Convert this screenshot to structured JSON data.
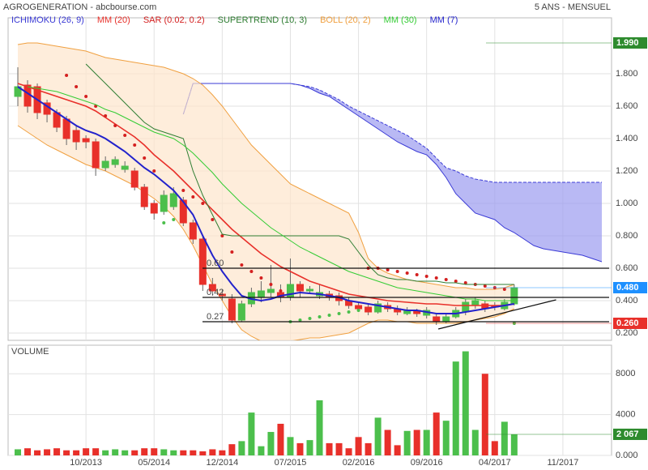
{
  "header": {
    "title": "AGROGENERATION - abcbourse.com",
    "period": "5 ANS - MENSUEL"
  },
  "chart_data": [
    {
      "type": "candlestick",
      "up_color": "#4cbf4c",
      "down_color": "#e8302a",
      "open": [
        1.66,
        1.73,
        1.72,
        1.62,
        1.56,
        1.52,
        1.45,
        1.4,
        1.38,
        1.22,
        1.24,
        1.21,
        1.2,
        1.1,
        1.0,
        0.95,
        0.98,
        1.02,
        0.88,
        0.78,
        0.5,
        0.44,
        0.41,
        0.28,
        0.38,
        0.42,
        0.45,
        0.45,
        0.42,
        0.5,
        0.46,
        0.43,
        0.44,
        0.43,
        0.4,
        0.37,
        0.36,
        0.33,
        0.37,
        0.35,
        0.32,
        0.34,
        0.31,
        0.3,
        0.27,
        0.3,
        0.33,
        0.37,
        0.38,
        0.37,
        0.35,
        0.38
      ],
      "high": [
        1.84,
        1.76,
        1.74,
        1.64,
        1.58,
        1.54,
        1.48,
        1.42,
        1.4,
        1.29,
        1.29,
        1.26,
        1.22,
        1.12,
        1.02,
        1.08,
        1.1,
        1.04,
        0.9,
        0.8,
        0.54,
        0.47,
        0.44,
        0.4,
        0.48,
        0.52,
        0.62,
        0.5,
        0.66,
        0.52,
        0.49,
        0.5,
        0.46,
        0.45,
        0.42,
        0.39,
        0.38,
        0.4,
        0.39,
        0.37,
        0.36,
        0.35,
        0.36,
        0.32,
        0.32,
        0.36,
        0.41,
        0.42,
        0.4,
        0.39,
        0.41,
        0.5
      ],
      "low": [
        1.6,
        1.56,
        1.52,
        1.5,
        1.44,
        1.36,
        1.33,
        1.34,
        1.17,
        1.2,
        1.22,
        1.19,
        1.08,
        0.96,
        0.9,
        0.93,
        0.96,
        0.86,
        0.75,
        0.46,
        0.43,
        0.4,
        0.26,
        0.27,
        0.36,
        0.39,
        0.42,
        0.39,
        0.4,
        0.42,
        0.44,
        0.41,
        0.4,
        0.37,
        0.35,
        0.33,
        0.31,
        0.32,
        0.33,
        0.31,
        0.31,
        0.3,
        0.29,
        0.25,
        0.26,
        0.29,
        0.31,
        0.35,
        0.33,
        0.34,
        0.34,
        0.37
      ],
      "close": [
        1.72,
        1.6,
        1.56,
        1.55,
        1.47,
        1.4,
        1.38,
        1.38,
        1.22,
        1.26,
        1.27,
        1.23,
        1.1,
        0.98,
        0.94,
        1.05,
        1.06,
        0.88,
        0.78,
        0.5,
        0.46,
        0.43,
        0.28,
        0.38,
        0.45,
        0.46,
        0.47,
        0.42,
        0.5,
        0.46,
        0.47,
        0.45,
        0.42,
        0.4,
        0.37,
        0.35,
        0.33,
        0.38,
        0.35,
        0.33,
        0.34,
        0.32,
        0.34,
        0.27,
        0.3,
        0.34,
        0.39,
        0.4,
        0.35,
        0.36,
        0.39,
        0.48
      ],
      "ylim": [
        0.155,
        2.145
      ],
      "yticks": [
        {
          "value": 0.2,
          "label": "0.200"
        },
        {
          "value": 0.4,
          "label": "0.400"
        },
        {
          "value": 0.6,
          "label": "0.600"
        },
        {
          "value": 0.8,
          "label": "0.800"
        },
        {
          "value": 1.0,
          "label": "1.000"
        },
        {
          "value": 1.2,
          "label": "1.200"
        },
        {
          "value": 1.4,
          "label": "1.400"
        },
        {
          "value": 1.6,
          "label": "1.600"
        },
        {
          "value": 1.8,
          "label": "1.800"
        }
      ],
      "series": [
        {
          "name": "ICHIMOKU (26, 9)",
          "color": "#3a3ad6",
          "span_a": [
            null,
            null,
            null,
            null,
            null,
            null,
            null,
            null,
            null,
            null,
            null,
            null,
            null,
            null,
            null,
            null,
            null,
            1.55,
            1.74,
            1.74,
            1.74,
            1.74,
            1.74,
            1.74,
            1.74,
            1.74,
            1.74,
            1.74,
            1.74,
            1.73,
            1.72,
            1.7,
            1.67,
            1.64,
            1.6,
            1.57,
            1.54,
            1.51,
            1.48,
            1.45,
            1.42,
            1.38,
            1.34,
            1.28,
            1.22,
            1.2,
            1.17,
            1.15,
            1.14,
            1.13,
            1.13,
            1.13,
            1.13,
            1.13,
            1.13,
            1.13,
            1.13,
            1.13,
            1.13,
            1.13,
            1.13
          ],
          "span_b": [
            null,
            null,
            null,
            null,
            null,
            null,
            null,
            null,
            null,
            null,
            null,
            null,
            null,
            null,
            null,
            null,
            null,
            1.55,
            1.74,
            1.74,
            1.74,
            1.74,
            1.74,
            1.74,
            1.74,
            1.74,
            1.74,
            1.74,
            1.74,
            1.73,
            1.71,
            1.68,
            1.66,
            1.62,
            1.58,
            1.54,
            1.5,
            1.46,
            1.42,
            1.38,
            1.35,
            1.32,
            1.3,
            1.24,
            1.16,
            1.06,
            1.0,
            0.94,
            0.92,
            0.9,
            0.85,
            0.82,
            0.78,
            0.74,
            0.72,
            0.71,
            0.7,
            0.69,
            0.68,
            0.66,
            0.64
          ]
        },
        {
          "name": "MM (20)",
          "color": "#e8302a",
          "values": [
            1.74,
            1.72,
            1.7,
            1.68,
            1.66,
            1.64,
            1.62,
            1.6,
            1.57,
            1.53,
            1.49,
            1.45,
            1.41,
            1.36,
            1.3,
            1.25,
            1.2,
            1.14,
            1.08,
            1.02,
            0.96,
            0.9,
            0.84,
            0.79,
            0.74,
            0.69,
            0.65,
            0.61,
            0.58,
            0.55,
            0.52,
            0.5,
            0.48,
            0.46,
            0.44,
            0.43,
            0.42,
            0.41,
            0.4,
            0.395,
            0.39,
            0.385,
            0.38,
            0.38,
            0.375,
            0.37,
            0.37,
            0.37,
            0.37,
            0.37,
            0.37,
            0.38
          ]
        },
        {
          "name": "SAR (0.02, 0.2)",
          "color": "#d42020",
          "values": [
            null,
            null,
            null,
            null,
            null,
            1.79,
            1.72,
            1.66,
            1.6,
            1.54,
            1.48,
            1.42,
            1.36,
            1.28,
            1.2,
            0.88,
            0.9,
            1.08,
            1.04,
            1.0,
            0.9,
            0.8,
            0.7,
            0.62,
            0.58,
            0.54,
            0.5,
            0.46,
            0.27,
            0.28,
            0.29,
            0.3,
            0.31,
            0.32,
            0.33,
            0.34,
            0.6,
            0.6,
            0.59,
            0.58,
            0.57,
            0.56,
            0.55,
            0.54,
            0.53,
            0.52,
            0.51,
            0.5,
            0.49,
            0.48,
            0.47,
            0.26
          ]
        },
        {
          "name": "SUPERTREND (10, 3)",
          "color": "#2e7d32",
          "values": [
            null,
            null,
            null,
            null,
            null,
            null,
            null,
            1.86,
            1.8,
            1.74,
            1.68,
            1.62,
            1.56,
            1.5,
            1.46,
            1.44,
            1.42,
            1.4,
            1.2,
            1.05,
            0.93,
            0.81,
            0.8,
            0.8,
            0.8,
            0.8,
            0.8,
            0.8,
            0.8,
            0.8,
            0.8,
            0.8,
            0.8,
            0.8,
            0.78,
            0.7,
            0.62,
            0.56,
            0.54,
            0.53,
            0.53,
            0.52,
            0.52,
            0.52,
            0.51,
            0.51,
            0.5,
            0.5,
            0.5,
            0.5,
            0.5,
            0.5
          ]
        },
        {
          "name": "BOLL (20, 2)",
          "color": "#f0a040",
          "upper": [
            1.98,
            1.99,
            1.99,
            1.98,
            1.97,
            1.96,
            1.95,
            1.94,
            1.92,
            1.9,
            1.89,
            1.88,
            1.87,
            1.86,
            1.85,
            1.84,
            1.82,
            1.8,
            1.77,
            1.73,
            1.67,
            1.6,
            1.52,
            1.44,
            1.36,
            1.3,
            1.24,
            1.18,
            1.12,
            1.09,
            1.06,
            1.03,
            1.0,
            0.97,
            0.94,
            0.82,
            0.66,
            0.6,
            0.57,
            0.55,
            0.53,
            0.52,
            0.51,
            0.5,
            0.49,
            0.48,
            0.48,
            0.47,
            0.47,
            0.47,
            0.48,
            0.5
          ],
          "lower": [
            1.48,
            1.44,
            1.4,
            1.36,
            1.33,
            1.3,
            1.27,
            1.24,
            1.22,
            1.2,
            1.17,
            1.14,
            1.11,
            1.07,
            1.03,
            0.98,
            0.92,
            0.84,
            0.74,
            0.62,
            0.5,
            0.4,
            0.3,
            0.22,
            0.18,
            0.15,
            0.14,
            0.14,
            0.15,
            0.16,
            0.17,
            0.17,
            0.18,
            0.19,
            0.2,
            0.23,
            0.26,
            0.28,
            0.28,
            0.27,
            0.27,
            0.26,
            0.26,
            0.26,
            0.26,
            0.26,
            0.27,
            0.28,
            0.29,
            0.3,
            0.32,
            0.35
          ]
        },
        {
          "name": "MM (30)",
          "color": "#33cc33",
          "values": [
            null,
            1.72,
            1.71,
            1.7,
            1.69,
            1.67,
            1.65,
            1.63,
            1.61,
            1.58,
            1.56,
            1.53,
            1.5,
            1.47,
            1.44,
            1.42,
            1.4,
            1.36,
            1.31,
            1.25,
            1.19,
            1.12,
            1.06,
            1.0,
            0.95,
            0.9,
            0.85,
            0.81,
            0.77,
            0.73,
            0.7,
            0.67,
            0.64,
            0.61,
            0.58,
            0.56,
            0.54,
            0.52,
            0.5,
            0.48,
            0.47,
            0.46,
            0.45,
            0.44,
            0.43,
            0.42,
            0.41,
            0.41,
            0.4,
            0.4,
            0.4,
            0.4
          ]
        },
        {
          "name": "MM (7)",
          "color": "#2222cc",
          "values": [
            1.72,
            1.68,
            1.64,
            1.6,
            1.56,
            1.52,
            1.48,
            1.45,
            1.43,
            1.4,
            1.36,
            1.32,
            1.27,
            1.22,
            1.18,
            1.13,
            1.08,
            1.01,
            0.93,
            0.8,
            0.68,
            0.58,
            0.5,
            0.43,
            0.41,
            0.4,
            0.41,
            0.43,
            0.44,
            0.45,
            0.445,
            0.44,
            0.43,
            0.42,
            0.4,
            0.39,
            0.38,
            0.37,
            0.36,
            0.35,
            0.34,
            0.34,
            0.33,
            0.32,
            0.32,
            0.32,
            0.33,
            0.34,
            0.35,
            0.36,
            0.37,
            0.38
          ]
        }
      ],
      "levels": [
        {
          "value": 0.6,
          "label": "0.60"
        },
        {
          "value": 0.42,
          "label": "0.42"
        },
        {
          "value": 0.27,
          "label": "0.27"
        }
      ],
      "trendline": {
        "x": [
          43.2,
          55.3
        ],
        "values": [
          0.225,
          0.405
        ]
      },
      "markers": [
        {
          "value": 1.99,
          "label": "1.990",
          "color": "#2e8b2e"
        },
        {
          "value": 0.48,
          "label": "0.480",
          "color": "#1e90ff"
        },
        {
          "value": 0.26,
          "label": "0.260",
          "color": "#e8302a"
        }
      ]
    },
    {
      "type": "bar",
      "title": "VOLUME",
      "values": [
        600,
        700,
        500,
        600,
        700,
        500,
        500,
        700,
        700,
        500,
        600,
        500,
        500,
        700,
        700,
        600,
        500,
        500,
        500,
        400,
        600,
        500,
        1100,
        1400,
        4200,
        900,
        2300,
        3100,
        1800,
        1200,
        1500,
        5400,
        1200,
        1200,
        700,
        1800,
        1200,
        3700,
        2500,
        1000,
        2400,
        2500,
        2500,
        4200,
        3400,
        9200,
        10200,
        2500,
        8000,
        1400,
        3300,
        2067
      ],
      "ylim": [
        0,
        10800
      ],
      "yticks": [
        {
          "value": 0,
          "label": "0.000"
        },
        4000,
        8000
      ],
      "xlim": [
        -1,
        61
      ],
      "xticks": [
        {
          "value": 7,
          "label": "10/2013"
        },
        {
          "value": 14,
          "label": "05/2014"
        },
        {
          "value": 21,
          "label": "12/2014"
        },
        {
          "value": 28,
          "label": "07/2015"
        },
        {
          "value": 35,
          "label": "02/2016"
        },
        {
          "value": 42,
          "label": "09/2016"
        },
        {
          "value": 49,
          "label": "04/2017"
        },
        {
          "value": 56,
          "label": "11/2017"
        }
      ],
      "marker": {
        "value": 2067,
        "label": "2 067",
        "color": "#2e8b2e"
      }
    }
  ]
}
